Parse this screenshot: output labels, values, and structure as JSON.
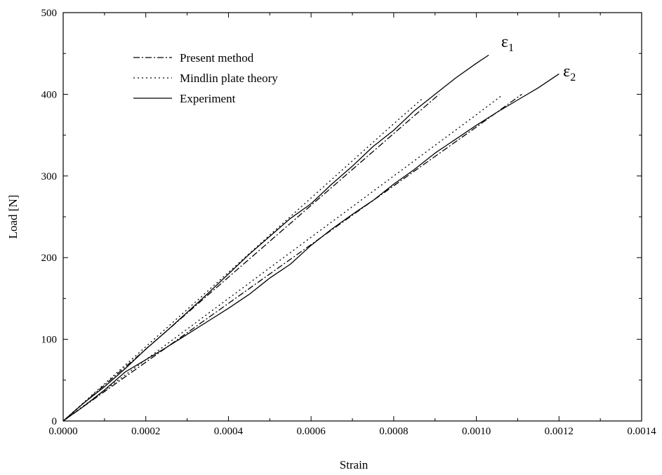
{
  "chart_data": {
    "type": "line",
    "xlabel": "Strain",
    "ylabel": "Load [N]",
    "xlim": [
      0,
      0.0014
    ],
    "ylim": [
      0,
      500
    ],
    "x_ticks": [
      "0.0000",
      "0.0002",
      "0.0004",
      "0.0006",
      "0.0008",
      "0.0010",
      "0.0012",
      "0.0014"
    ],
    "y_ticks": [
      "0",
      "100",
      "200",
      "300",
      "400",
      "500"
    ],
    "grid": false,
    "legend_position": "top-left",
    "legend": [
      {
        "label": "Present method",
        "style": "dashdot"
      },
      {
        "label": "Mindlin plate theory",
        "style": "dotted"
      },
      {
        "label": "Experiment",
        "style": "solid"
      }
    ],
    "annotations": [
      {
        "base": "ε",
        "sub": "1",
        "x": 0.00106,
        "y": 458
      },
      {
        "base": "ε",
        "sub": "2",
        "x": 0.00121,
        "y": 422
      }
    ],
    "series": [
      {
        "group": "ε1",
        "style": "dashdot",
        "color": "#000000",
        "x": [
          0,
          0.0002,
          0.0004,
          0.0006,
          0.0008,
          0.00091
        ],
        "y": [
          0,
          88,
          176,
          264,
          352,
          400
        ]
      },
      {
        "group": "ε1",
        "style": "dotted",
        "color": "#000000",
        "x": [
          0,
          0.0002,
          0.0004,
          0.0006,
          0.0008,
          0.00087
        ],
        "y": [
          0,
          91,
          182,
          273,
          364,
          395
        ]
      },
      {
        "group": "ε1",
        "style": "solid",
        "color": "#000000",
        "x": [
          0,
          5e-05,
          0.0001,
          0.00015,
          0.0002,
          0.00025,
          0.0003,
          0.00035,
          0.0004,
          0.00045,
          0.0005,
          0.00055,
          0.0006,
          0.00065,
          0.0007,
          0.00075,
          0.0008,
          0.00085,
          0.0009,
          0.00095,
          0.001,
          0.00103
        ],
        "y": [
          0,
          22,
          42,
          64,
          88,
          110,
          133,
          156,
          180,
          204,
          226,
          248,
          266,
          290,
          312,
          336,
          356,
          380,
          400,
          420,
          438,
          448
        ]
      },
      {
        "group": "ε2",
        "style": "dashdot",
        "color": "#000000",
        "x": [
          0,
          0.0002,
          0.0004,
          0.0006,
          0.0008,
          0.001,
          0.00111
        ],
        "y": [
          0,
          72,
          144,
          216,
          288,
          360,
          400
        ]
      },
      {
        "group": "ε2",
        "style": "dotted",
        "color": "#000000",
        "x": [
          0,
          0.0002,
          0.0004,
          0.0006,
          0.0008,
          0.001,
          0.00106
        ],
        "y": [
          0,
          75,
          150,
          225,
          300,
          375,
          398
        ]
      },
      {
        "group": "ε2",
        "style": "solid",
        "color": "#000000",
        "x": [
          0,
          5e-05,
          0.0001,
          0.00015,
          0.0002,
          0.00025,
          0.0003,
          0.00035,
          0.0004,
          0.00045,
          0.0005,
          0.00055,
          0.0006,
          0.00065,
          0.0007,
          0.00075,
          0.0008,
          0.00085,
          0.0009,
          0.00095,
          0.001,
          0.00105,
          0.0011,
          0.00115,
          0.0012
        ],
        "y": [
          0,
          18,
          38,
          60,
          75,
          90,
          106,
          122,
          138,
          155,
          175,
          192,
          215,
          235,
          253,
          270,
          290,
          308,
          328,
          345,
          362,
          378,
          393,
          408,
          425
        ]
      }
    ]
  }
}
